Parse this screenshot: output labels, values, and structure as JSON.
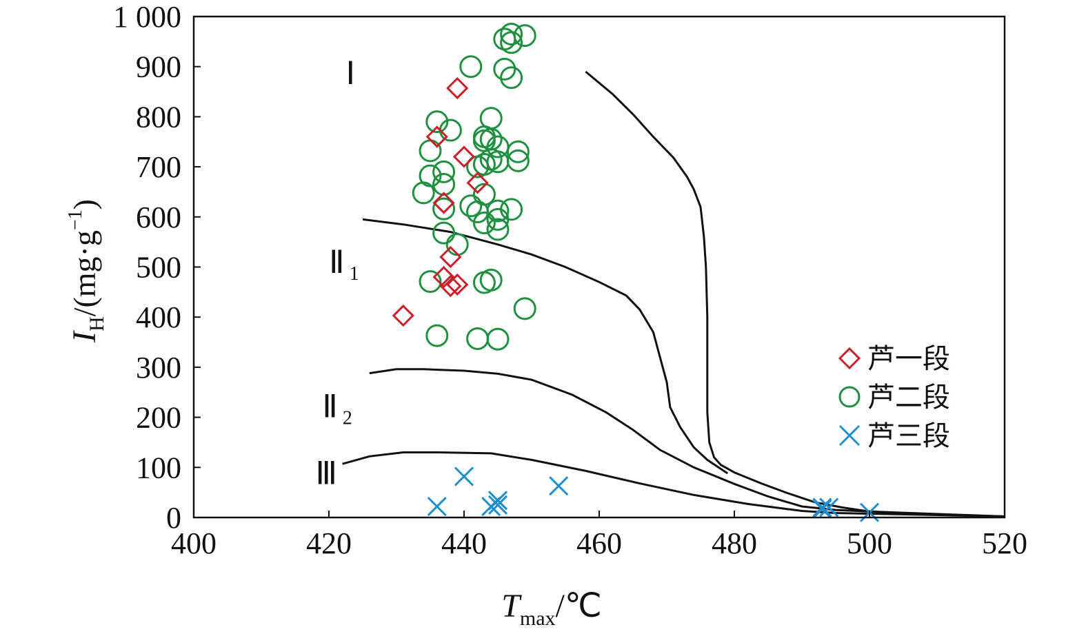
{
  "chart_data": {
    "type": "scatter",
    "xlabel": {
      "main": "T",
      "sub": "max",
      "unit": "/℃"
    },
    "ylabel": {
      "main": "I",
      "sub": "H",
      "unit": "/(mg·g",
      "sup": "−1",
      "close": ")"
    },
    "xlim": [
      400,
      520
    ],
    "ylim": [
      0,
      1000
    ],
    "xticks": [
      400,
      420,
      440,
      460,
      480,
      500,
      520
    ],
    "xtick_labels": [
      "400",
      "420",
      "440",
      "460",
      "480",
      "500",
      "520"
    ],
    "yticks": [
      0,
      100,
      200,
      300,
      400,
      500,
      600,
      700,
      800,
      900,
      1000
    ],
    "ytick_labels": [
      "0",
      "100",
      "200",
      "300",
      "400",
      "500",
      "600",
      "700",
      "800",
      "900",
      "1 000"
    ],
    "grid": false,
    "legend_position": "bottom-right",
    "series": [
      {
        "name": "芦一段",
        "marker": "diamond",
        "color": "#cc1f2a",
        "points": [
          [
            431,
            403
          ],
          [
            436,
            760
          ],
          [
            437,
            628
          ],
          [
            437,
            480
          ],
          [
            438,
            520
          ],
          [
            438,
            462
          ],
          [
            439,
            465
          ],
          [
            439,
            857
          ],
          [
            440,
            720
          ],
          [
            442,
            668
          ]
        ]
      },
      {
        "name": "芦二段",
        "marker": "circle",
        "color": "#1e9140",
        "points": [
          [
            435,
            682
          ],
          [
            434,
            648
          ],
          [
            436,
            790
          ],
          [
            435,
            732
          ],
          [
            437,
            690
          ],
          [
            437,
            665
          ],
          [
            437,
            616
          ],
          [
            437,
            568
          ],
          [
            435,
            471
          ],
          [
            436,
            363
          ],
          [
            438,
            773
          ],
          [
            439,
            545
          ],
          [
            441,
            900
          ],
          [
            441,
            622
          ],
          [
            442,
            610
          ],
          [
            442,
            700
          ],
          [
            443,
            705
          ],
          [
            443,
            588
          ],
          [
            443,
            645
          ],
          [
            443,
            760
          ],
          [
            443,
            752
          ],
          [
            444,
            715
          ],
          [
            444,
            797
          ],
          [
            444,
            755
          ],
          [
            442,
            357
          ],
          [
            443,
            469
          ],
          [
            444,
            474
          ],
          [
            445,
            595
          ],
          [
            445,
            612
          ],
          [
            445,
            575
          ],
          [
            445,
            740
          ],
          [
            445,
            710
          ],
          [
            445,
            356
          ],
          [
            446,
            955
          ],
          [
            446,
            895
          ],
          [
            447,
            948
          ],
          [
            447,
            615
          ],
          [
            447,
            878
          ],
          [
            447,
            965
          ],
          [
            448,
            730
          ],
          [
            448,
            712
          ],
          [
            449,
            962
          ],
          [
            449,
            417
          ]
        ]
      },
      {
        "name": "芦三段",
        "marker": "x",
        "color": "#1d8fd0",
        "points": [
          [
            436,
            22
          ],
          [
            440,
            82
          ],
          [
            444,
            22
          ],
          [
            445,
            25
          ],
          [
            445,
            34
          ],
          [
            454,
            63
          ],
          [
            493,
            17
          ],
          [
            493,
            20
          ],
          [
            494,
            20
          ],
          [
            500,
            10
          ]
        ]
      }
    ],
    "boundary_lines": [
      {
        "label": "I",
        "points": [
          [
            458,
            890
          ],
          [
            462,
            845
          ],
          [
            465,
            805
          ],
          [
            468,
            760
          ],
          [
            471,
            718
          ],
          [
            473,
            680
          ],
          [
            474,
            655
          ],
          [
            475,
            620
          ],
          [
            475.5,
            560
          ],
          [
            475.8,
            500
          ],
          [
            476,
            400
          ],
          [
            476,
            300
          ],
          [
            476,
            210
          ],
          [
            476.3,
            150
          ],
          [
            477,
            120
          ],
          [
            478,
            105
          ],
          [
            480,
            90
          ],
          [
            484,
            68
          ],
          [
            488,
            48
          ],
          [
            492,
            30
          ],
          [
            496,
            20
          ],
          [
            500,
            12
          ],
          [
            510,
            6
          ],
          [
            520,
            2
          ]
        ]
      },
      {
        "label": "II1",
        "points": [
          [
            425,
            595
          ],
          [
            431,
            585
          ],
          [
            438,
            570
          ],
          [
            445,
            545
          ],
          [
            450,
            525
          ],
          [
            455,
            500
          ],
          [
            460,
            470
          ],
          [
            464,
            443
          ],
          [
            466,
            415
          ],
          [
            468,
            370
          ],
          [
            469,
            320
          ],
          [
            470,
            270
          ],
          [
            470.5,
            220
          ],
          [
            472,
            180
          ],
          [
            474,
            140
          ],
          [
            476,
            115
          ],
          [
            479,
            88
          ]
        ]
      },
      {
        "label": "II2",
        "points": [
          [
            426,
            288
          ],
          [
            430,
            296
          ],
          [
            434,
            296
          ],
          [
            440,
            293
          ],
          [
            445,
            287
          ],
          [
            450,
            275
          ],
          [
            456,
            245
          ],
          [
            461,
            210
          ],
          [
            465,
            175
          ],
          [
            469,
            135
          ],
          [
            474,
            100
          ],
          [
            480,
            67
          ],
          [
            485,
            42
          ],
          [
            490,
            22
          ],
          [
            495,
            15
          ],
          [
            500,
            12
          ],
          [
            520,
            2
          ]
        ]
      },
      {
        "label": "III",
        "points": [
          [
            422,
            107
          ],
          [
            426,
            122
          ],
          [
            431,
            130
          ],
          [
            436,
            130
          ],
          [
            444,
            128
          ],
          [
            450,
            115
          ],
          [
            458,
            93
          ],
          [
            466,
            68
          ],
          [
            474,
            45
          ],
          [
            482,
            27
          ],
          [
            490,
            13
          ],
          [
            495,
            9
          ],
          [
            520,
            2
          ]
        ]
      }
    ],
    "region_labels": [
      {
        "text": "Ⅰ",
        "sub": "",
        "x": 422.5,
        "y": 865
      },
      {
        "text": "Ⅱ",
        "sub": "1",
        "x": 420,
        "y": 488
      },
      {
        "text": "Ⅱ",
        "sub": "2",
        "x": 419,
        "y": 200
      },
      {
        "text": "Ⅲ",
        "sub": "",
        "x": 418,
        "y": 67
      }
    ]
  }
}
